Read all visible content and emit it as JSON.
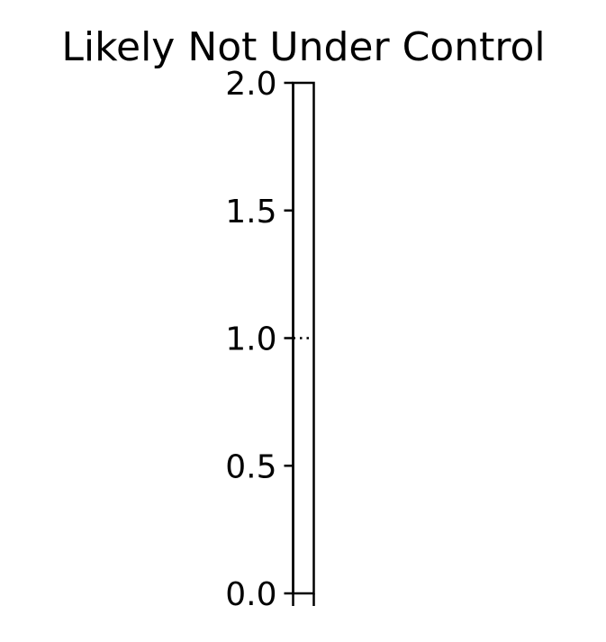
{
  "chart_data": {
    "type": "bar",
    "title": "Likely Not Under Control",
    "xlabel": "",
    "ylabel": "",
    "categories": [
      ""
    ],
    "values": [
      2.0
    ],
    "ylim": [
      0.0,
      2.0
    ],
    "yticks": [
      0.0,
      0.5,
      1.0,
      1.5,
      2.0
    ],
    "ytick_labels": [
      "0.0",
      "0.5",
      "1.0",
      "1.5",
      "2.0"
    ],
    "reference_line": {
      "y": 1.0,
      "style": "dotted"
    },
    "grid": false,
    "legend": "none",
    "colors": {
      "bar_fill": "#ffffff",
      "bar_edge": "#000000",
      "axis": "#000000"
    }
  }
}
